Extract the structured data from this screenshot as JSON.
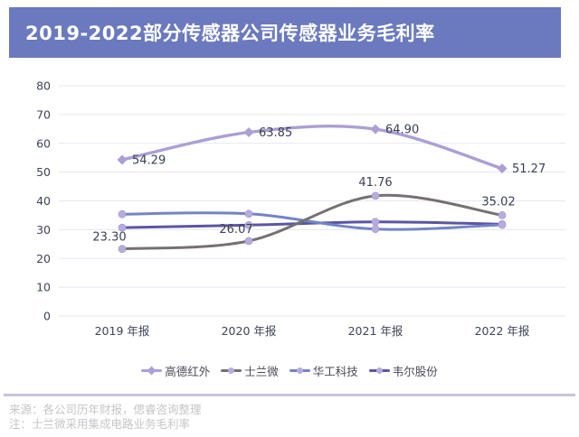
{
  "title": "2019-2022部分传感器公司传感器业务毛利率",
  "chart_data": {
    "type": "line",
    "smooth": true,
    "grid": true,
    "legend_position": "bottom",
    "categories": [
      "2019 年报",
      "2020 年报",
      "2021 年报",
      "2022 年报"
    ],
    "y_ticks": [
      0,
      10,
      20,
      30,
      40,
      50,
      60,
      70,
      80
    ],
    "ylim": [
      0,
      80
    ],
    "series": [
      {
        "name": "高德红外",
        "color": "#ab9fd5",
        "marker": "diamond",
        "values": [
          54.29,
          63.85,
          64.9,
          51.27
        ],
        "labels": [
          "54.29",
          "63.85",
          "64.90",
          "51.27"
        ]
      },
      {
        "name": "士兰微",
        "color": "#757170",
        "marker": "circle",
        "values": [
          23.3,
          26.07,
          41.76,
          35.02
        ],
        "labels": [
          "23.30",
          "26.07",
          "41.76",
          "35.02"
        ]
      },
      {
        "name": "华工科技",
        "color": "#7384c6",
        "marker": "circle",
        "values": [
          35.4,
          35.5,
          30.2,
          31.7
        ],
        "labels": null
      },
      {
        "name": "韦尔股份",
        "color": "#5c55a2",
        "marker": "circle",
        "values": [
          30.7,
          31.6,
          32.7,
          31.9
        ],
        "labels": null
      }
    ]
  },
  "colors": {
    "banner_bg": "#6b7abe",
    "banner_text": "#ffffff",
    "grid_line": "#e4e7ef",
    "axis_text": "#3f4458",
    "data_label_text": "#3b4154",
    "marker_fill": "#b7addc",
    "marker_edge": "#a79bd3",
    "divider": "#c7c4df",
    "footer_text": "#c6c4c9"
  },
  "footer": {
    "source_note": "来源：各公司历年财报，偲睿咨询整理",
    "note": "注：士兰微采用集成电路业务毛利率"
  }
}
